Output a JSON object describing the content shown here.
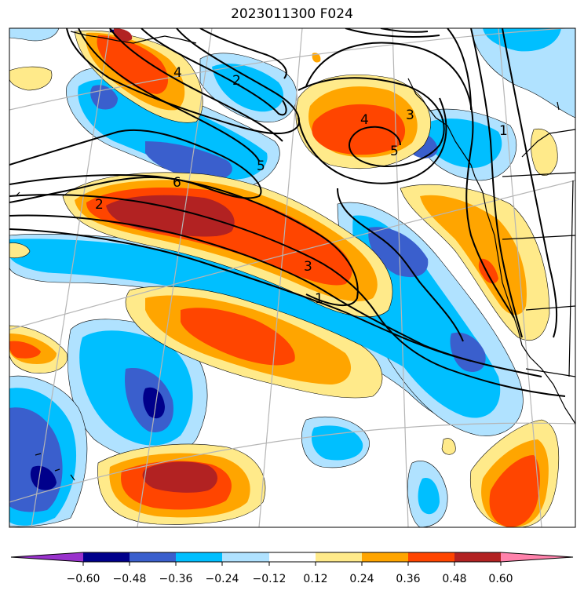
{
  "title": "2023011300 F024",
  "colors": {
    "fill_bins": [
      "#9932cc",
      "#00008b",
      "#3a5fcd",
      "#00bfff",
      "#b0e2ff",
      "#ffffff",
      "#ffea8a",
      "#ffa500",
      "#ff4500",
      "#b22222",
      "#ff82ab"
    ],
    "contour_line": "#000000",
    "coastline": "#000000",
    "graticule": "#b5b5b5"
  },
  "colorbar": {
    "extend": "both",
    "ticks": [
      "−0.60",
      "−0.48",
      "−0.36",
      "−0.24",
      "−0.12",
      "0.12",
      "0.24",
      "0.36",
      "0.48",
      "0.60"
    ]
  },
  "contour_labels": [
    "4",
    "2",
    "5",
    "6",
    "2",
    "3",
    "1",
    "4",
    "3",
    "5",
    "1"
  ]
}
